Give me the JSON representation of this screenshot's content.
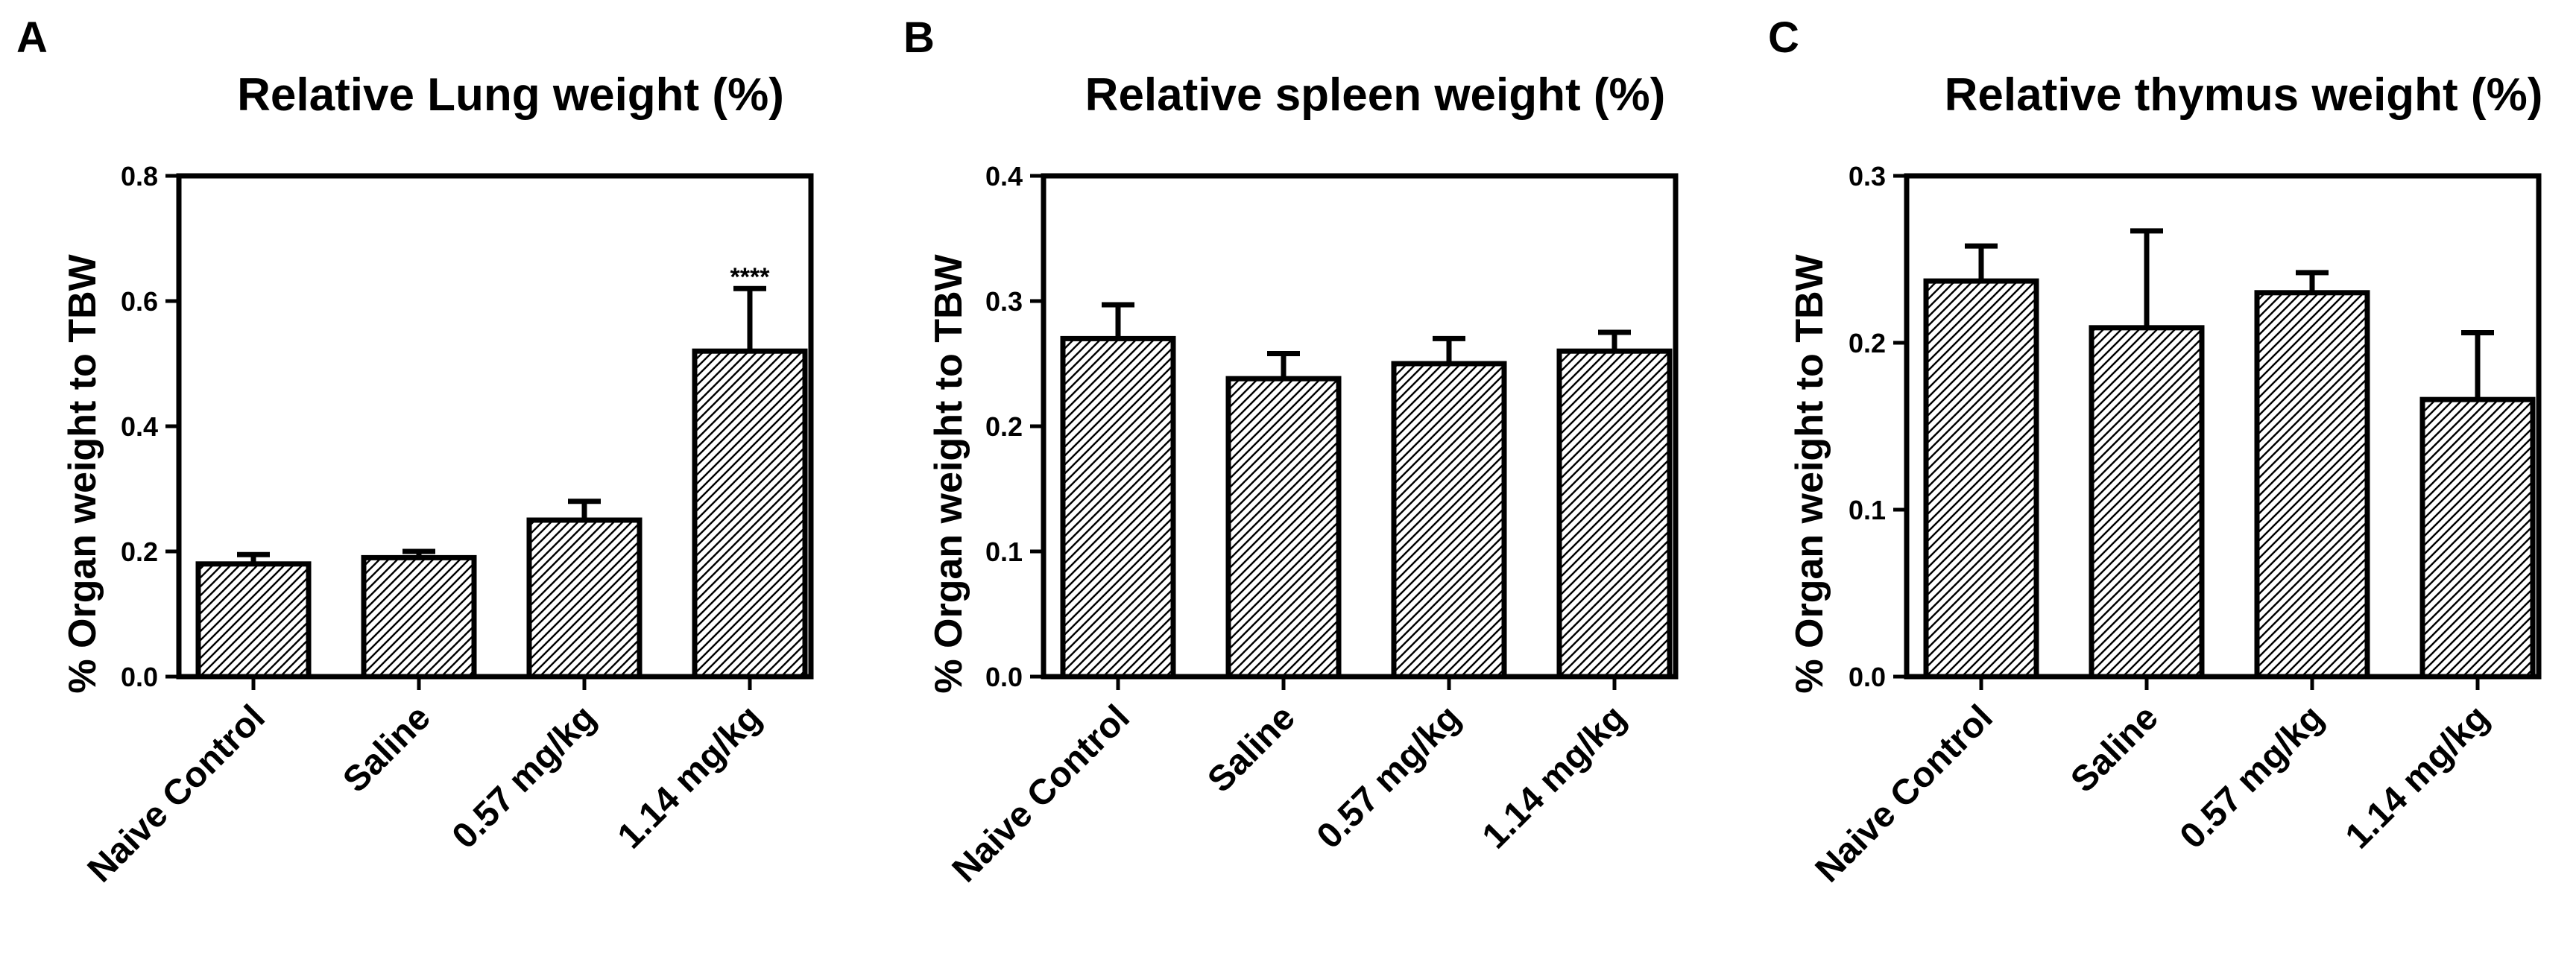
{
  "chart_data": [
    {
      "type": "bar",
      "panel": "A",
      "title": "Relative Lung weight (%)",
      "ylabel": "% Organ weight to TBW",
      "xlabel": "",
      "categories": [
        "Naive Control",
        "Saline",
        "0.57 mg/kg",
        "1.14 mg/kg"
      ],
      "values": [
        0.18,
        0.19,
        0.25,
        0.52
      ],
      "errors": [
        0.015,
        0.01,
        0.03,
        0.1
      ],
      "annotations": [
        "",
        "",
        "",
        "****"
      ],
      "ylim": [
        0,
        0.8
      ],
      "yticks": [
        "0.0",
        "0.2",
        "0.4",
        "0.6",
        "0.8"
      ]
    },
    {
      "type": "bar",
      "panel": "B",
      "title": "Relative spleen weight (%)",
      "ylabel": "% Organ weight to TBW",
      "xlabel": "",
      "categories": [
        "Naive Control",
        "Saline",
        "0.57 mg/kg",
        "1.14 mg/kg"
      ],
      "values": [
        0.27,
        0.238,
        0.25,
        0.26
      ],
      "errors": [
        0.027,
        0.02,
        0.02,
        0.015
      ],
      "annotations": [
        "",
        "",
        "",
        ""
      ],
      "ylim": [
        0,
        0.4
      ],
      "yticks": [
        "0.0",
        "0.1",
        "0.2",
        "0.3",
        "0.4"
      ]
    },
    {
      "type": "bar",
      "panel": "C",
      "title": "Relative thymus weight (%)",
      "ylabel": "% Organ weight to TBW",
      "xlabel": "",
      "categories": [
        "Naive Control",
        "Saline",
        "0.57 mg/kg",
        "1.14 mg/kg"
      ],
      "values": [
        0.237,
        0.209,
        0.23,
        0.166
      ],
      "errors": [
        0.021,
        0.058,
        0.012,
        0.04
      ],
      "annotations": [
        "",
        "",
        "",
        ""
      ],
      "ylim": [
        0,
        0.3
      ],
      "yticks": [
        "0.0",
        "0.1",
        "0.2",
        "0.3"
      ]
    }
  ]
}
